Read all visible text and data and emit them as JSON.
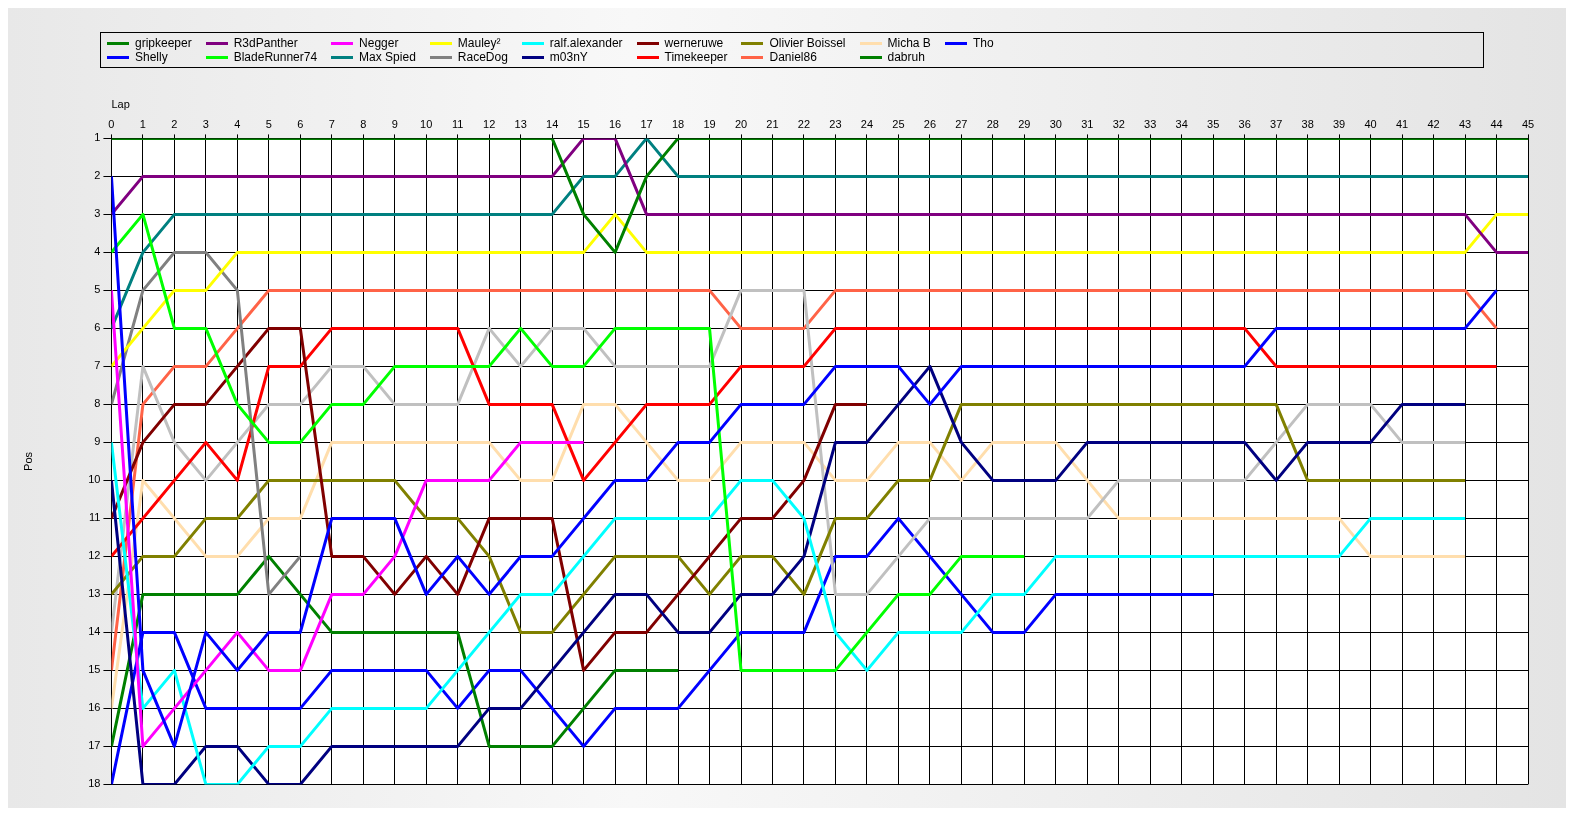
{
  "chart_data": {
    "type": "line",
    "xlabel": "Lap",
    "ylabel": "Pos",
    "x": [
      0,
      1,
      2,
      3,
      4,
      5,
      6,
      7,
      8,
      9,
      10,
      11,
      12,
      13,
      14,
      15,
      16,
      17,
      18,
      19,
      20,
      21,
      22,
      23,
      24,
      25,
      26,
      27,
      28,
      29,
      30,
      31,
      32,
      33,
      34,
      35,
      36,
      37,
      38,
      39,
      40,
      41,
      42,
      43,
      44,
      45
    ],
    "xlim": [
      0,
      45
    ],
    "xticks": [
      0,
      1,
      2,
      3,
      4,
      5,
      6,
      7,
      8,
      9,
      10,
      11,
      12,
      13,
      14,
      15,
      16,
      17,
      18,
      19,
      20,
      21,
      22,
      23,
      24,
      25,
      26,
      27,
      28,
      29,
      30,
      31,
      32,
      33,
      34,
      35,
      36,
      37,
      38,
      39,
      40,
      41,
      42,
      43,
      44,
      45
    ],
    "ylim": [
      18,
      1
    ],
    "yticks": [
      1,
      2,
      3,
      4,
      5,
      6,
      7,
      8,
      9,
      10,
      11,
      12,
      13,
      14,
      15,
      16,
      17,
      18
    ],
    "grid": true,
    "legend": "top",
    "marker": "none",
    "series": [
      {
        "name": "gripkeeper",
        "color": "#008000",
        "values": [
          1,
          1,
          1,
          1,
          1,
          1,
          1,
          1,
          1,
          1,
          1,
          1,
          1,
          1,
          1,
          3,
          4,
          2,
          1,
          1,
          1,
          1,
          1,
          1,
          1,
          1,
          1,
          1,
          1,
          1,
          1,
          1,
          1,
          1,
          1,
          1,
          1,
          1,
          1,
          1,
          1,
          1,
          1,
          1,
          1,
          1
        ]
      },
      {
        "name": "Shelly",
        "color": "#0000ff",
        "values": [
          2,
          15,
          17,
          14,
          15,
          14,
          14,
          11,
          11,
          11,
          13,
          12,
          13,
          12,
          12,
          11,
          10,
          10,
          9,
          9,
          8,
          8,
          8,
          7,
          7,
          7,
          8,
          7,
          7,
          7,
          7,
          7,
          7,
          7,
          7,
          7,
          7,
          6,
          6,
          6,
          6,
          6,
          6,
          6,
          5,
          null
        ]
      },
      {
        "name": "R3dPanther",
        "color": "#800080",
        "values": [
          3,
          2,
          2,
          2,
          2,
          2,
          2,
          2,
          2,
          2,
          2,
          2,
          2,
          2,
          2,
          1,
          1,
          3,
          3,
          3,
          3,
          3,
          3,
          3,
          3,
          3,
          3,
          3,
          3,
          3,
          3,
          3,
          3,
          3,
          3,
          3,
          3,
          3,
          3,
          3,
          3,
          3,
          3,
          3,
          4,
          4
        ]
      },
      {
        "name": "BladeRunner74",
        "color": "#00ff00",
        "values": [
          4,
          3,
          6,
          6,
          8,
          9,
          9,
          8,
          8,
          7,
          7,
          7,
          7,
          6,
          7,
          7,
          6,
          6,
          6,
          6,
          15,
          15,
          15,
          15,
          14,
          13,
          13,
          12,
          12,
          12,
          null,
          null,
          null,
          null,
          null,
          null,
          null,
          null,
          null,
          null,
          null,
          null,
          null,
          null,
          null,
          null
        ]
      },
      {
        "name": "Negger",
        "color": "#ff00ff",
        "values": [
          5,
          17,
          16,
          15,
          14,
          15,
          15,
          13,
          13,
          12,
          10,
          10,
          10,
          9,
          9,
          9,
          null,
          null,
          null,
          null,
          null,
          null,
          null,
          null,
          null,
          null,
          null,
          null,
          null,
          null,
          null,
          null,
          null,
          null,
          null,
          null,
          null,
          null,
          null,
          null,
          null,
          null,
          null,
          null,
          null,
          null
        ]
      },
      {
        "name": "Max Spied",
        "color": "#008080",
        "values": [
          6,
          4,
          3,
          3,
          3,
          3,
          3,
          3,
          3,
          3,
          3,
          3,
          3,
          3,
          3,
          2,
          2,
          1,
          2,
          2,
          2,
          2,
          2,
          2,
          2,
          2,
          2,
          2,
          2,
          2,
          2,
          2,
          2,
          2,
          2,
          2,
          2,
          2,
          2,
          2,
          2,
          2,
          2,
          2,
          2,
          2
        ]
      },
      {
        "name": "Mauley²",
        "color": "#ffff00",
        "values": [
          7,
          6,
          5,
          5,
          4,
          4,
          4,
          4,
          4,
          4,
          4,
          4,
          4,
          4,
          4,
          4,
          3,
          4,
          4,
          4,
          4,
          4,
          4,
          4,
          4,
          4,
          4,
          4,
          4,
          4,
          4,
          4,
          4,
          4,
          4,
          4,
          4,
          4,
          4,
          4,
          4,
          4,
          4,
          4,
          3,
          3
        ]
      },
      {
        "name": "RaceDog",
        "color": "#808080",
        "values": [
          8,
          5,
          4,
          4,
          5,
          13,
          12,
          null,
          null,
          null,
          null,
          null,
          null,
          null,
          null,
          null,
          null,
          null,
          null,
          null,
          null,
          null,
          null,
          null,
          null,
          null,
          null,
          null,
          null,
          null,
          null,
          null,
          null,
          null,
          null,
          null,
          null,
          null,
          null,
          null,
          null,
          null,
          null,
          null,
          null,
          null
        ]
      },
      {
        "name": "ralf.alexander",
        "color": "#00ffff",
        "values": [
          9,
          16,
          15,
          18,
          18,
          17,
          17,
          16,
          16,
          16,
          16,
          15,
          14,
          13,
          13,
          12,
          11,
          11,
          11,
          11,
          10,
          10,
          11,
          14,
          15,
          14,
          14,
          14,
          13,
          13,
          12,
          12,
          12,
          12,
          12,
          12,
          12,
          12,
          12,
          12,
          11,
          11,
          11,
          11,
          null,
          null
        ]
      },
      {
        "name": "m03nY",
        "color": "#000080",
        "values": [
          10,
          18,
          18,
          17,
          17,
          18,
          18,
          17,
          17,
          17,
          17,
          17,
          16,
          16,
          15,
          14,
          13,
          13,
          14,
          14,
          13,
          13,
          12,
          9,
          9,
          8,
          7,
          9,
          10,
          10,
          10,
          9,
          9,
          9,
          9,
          9,
          9,
          10,
          9,
          9,
          9,
          8,
          8,
          8,
          null,
          null
        ]
      },
      {
        "name": "werneruwe",
        "color": "#800000",
        "values": [
          11,
          9,
          8,
          8,
          7,
          6,
          6,
          12,
          12,
          13,
          12,
          13,
          11,
          11,
          11,
          15,
          14,
          14,
          13,
          12,
          11,
          11,
          10,
          8,
          8,
          null,
          null,
          null,
          null,
          null,
          null,
          null,
          null,
          null,
          null,
          null,
          null,
          null,
          null,
          null,
          null,
          null,
          null,
          null,
          null,
          null
        ]
      },
      {
        "name": "Timekeeper",
        "color": "#ff0000",
        "values": [
          12,
          11,
          10,
          9,
          10,
          7,
          7,
          6,
          6,
          6,
          6,
          6,
          8,
          8,
          8,
          10,
          9,
          8,
          8,
          8,
          7,
          7,
          7,
          6,
          6,
          6,
          6,
          6,
          6,
          6,
          6,
          6,
          6,
          6,
          6,
          6,
          6,
          7,
          7,
          7,
          7,
          7,
          7,
          7,
          7,
          null
        ]
      },
      {
        "name": "Olivier Boissel",
        "color": "#808000",
        "values": [
          13,
          12,
          12,
          11,
          11,
          10,
          10,
          10,
          10,
          10,
          11,
          11,
          12,
          14,
          14,
          13,
          12,
          12,
          12,
          13,
          12,
          12,
          13,
          11,
          11,
          10,
          10,
          8,
          8,
          8,
          8,
          8,
          8,
          8,
          8,
          8,
          8,
          8,
          10,
          10,
          10,
          10,
          10,
          10,
          null,
          null
        ]
      },
      {
        "color": "#c0c0c0",
        "values": [
          14,
          7,
          9,
          10,
          9,
          8,
          8,
          7,
          7,
          8,
          8,
          8,
          6,
          7,
          6,
          6,
          7,
          7,
          7,
          7,
          5,
          5,
          5,
          13,
          13,
          12,
          11,
          11,
          11,
          11,
          11,
          11,
          10,
          10,
          10,
          10,
          10,
          9,
          8,
          8,
          8,
          9,
          9,
          9,
          null,
          null
        ]
      },
      {
        "name": "Daniel86",
        "color": "#ff6347",
        "values": [
          15,
          8,
          7,
          7,
          6,
          5,
          5,
          5,
          5,
          5,
          5,
          5,
          5,
          5,
          5,
          5,
          5,
          5,
          5,
          5,
          6,
          6,
          6,
          5,
          5,
          5,
          5,
          5,
          5,
          5,
          5,
          5,
          5,
          5,
          5,
          5,
          5,
          5,
          5,
          5,
          5,
          5,
          5,
          5,
          6,
          null
        ]
      },
      {
        "name": "Micha B",
        "color": "#ffdead",
        "values": [
          16,
          10,
          11,
          12,
          12,
          11,
          11,
          9,
          9,
          9,
          9,
          9,
          9,
          10,
          10,
          8,
          8,
          9,
          10,
          10,
          9,
          9,
          9,
          10,
          10,
          9,
          9,
          10,
          9,
          9,
          9,
          10,
          11,
          11,
          11,
          11,
          11,
          11,
          11,
          11,
          12,
          12,
          12,
          12,
          null,
          null
        ]
      },
      {
        "name": "dabruh",
        "color": "#008000",
        "values": [
          17,
          13,
          13,
          13,
          13,
          12,
          13,
          14,
          14,
          14,
          14,
          14,
          17,
          17,
          17,
          16,
          15,
          15,
          15,
          null,
          null,
          null,
          null,
          null,
          null,
          null,
          null,
          null,
          null,
          null,
          null,
          null,
          null,
          null,
          null,
          null,
          null,
          null,
          null,
          null,
          null,
          null,
          null,
          null,
          null,
          null
        ]
      },
      {
        "name": "Tho",
        "color": "#0000ff",
        "values": [
          18,
          14,
          14,
          16,
          16,
          16,
          16,
          15,
          15,
          15,
          15,
          16,
          15,
          15,
          16,
          17,
          16,
          16,
          16,
          15,
          14,
          14,
          14,
          12,
          12,
          11,
          12,
          13,
          14,
          14,
          13,
          13,
          13,
          13,
          13,
          13,
          null,
          null,
          null,
          null,
          null,
          null,
          null,
          null,
          null,
          null
        ]
      }
    ]
  }
}
